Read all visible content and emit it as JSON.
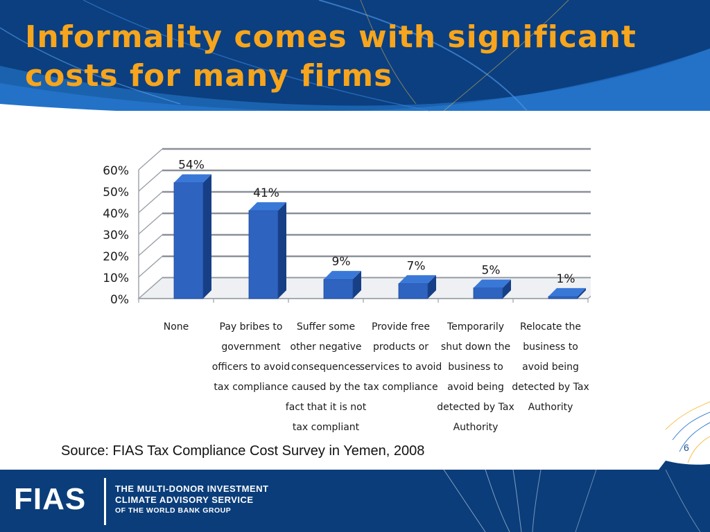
{
  "slide": {
    "title": "Informality comes with significant costs for many firms",
    "source": "Source: FIAS Tax Compliance Cost Survey in Yemen, 2008",
    "page_number": "6"
  },
  "footer": {
    "logo": "FIAS",
    "org_line1": "THE MULTI-DONOR INVESTMENT",
    "org_line2": "CLIMATE ADVISORY SERVICE",
    "org_line3": "OF THE WORLD BANK GROUP"
  },
  "colors": {
    "title": "#f7a51c",
    "header_blue": "#0d4e93",
    "footer_blue": "#0a3d7a",
    "bar_front": "#2f63c0",
    "bar_side": "#173f86",
    "bar_top": "#3a78d8"
  },
  "chart_data": {
    "type": "bar",
    "categories": [
      "None",
      "Pay bribes to government officers to avoid tax compliance",
      "Suffer some other negative consequences caused by the fact that it is not tax compliant",
      "Provide free products or services to avoid tax compliance",
      "Temporarily shut down the business to avoid being detected by Tax Authority",
      "Relocate the business to avoid being detected by Tax Authority"
    ],
    "category_lines": [
      [
        "None"
      ],
      [
        "Pay bribes to",
        "government",
        "officers to avoid",
        "tax compliance"
      ],
      [
        "Suffer some",
        "other negative",
        "consequences",
        "caused by the",
        "fact that it is not",
        "tax compliant"
      ],
      [
        "Provide free",
        "products or",
        "services to avoid",
        "tax compliance"
      ],
      [
        "Temporarily",
        "shut down the",
        "business to",
        "avoid being",
        "detected by Tax",
        "Authority"
      ],
      [
        "Relocate the",
        "business to",
        "avoid being",
        "detected by Tax",
        "Authority"
      ]
    ],
    "values": [
      54,
      41,
      9,
      7,
      5,
      1
    ],
    "data_labels": [
      "54%",
      "41%",
      "9%",
      "7%",
      "5%",
      "1%"
    ],
    "y_ticks": [
      "0%",
      "10%",
      "20%",
      "30%",
      "40%",
      "50%",
      "60%"
    ],
    "ylim": [
      0,
      60
    ],
    "grid": true,
    "legend": "none"
  }
}
